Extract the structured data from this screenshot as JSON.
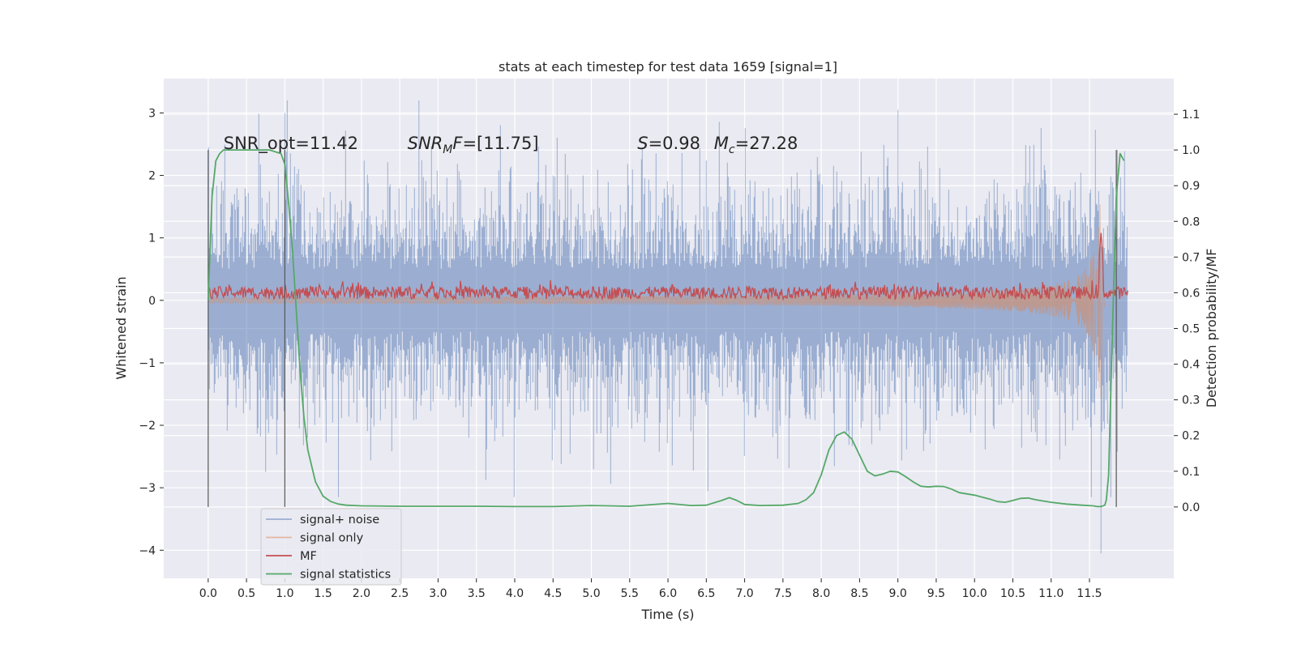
{
  "chart_data": {
    "type": "line",
    "title": "stats at each timestep for test data 1659 [signal=1]",
    "xlabel": "Time (s)",
    "ylabel": "Whitened strain",
    "ylabel_right": "Detection probability/MF",
    "xlim": [
      -0.58,
      12.6
    ],
    "ylim": [
      -4.45,
      3.55
    ],
    "ylim_right": [
      -0.2,
      1.2
    ],
    "x_ticks": [
      0.0,
      0.5,
      1.0,
      1.5,
      2.0,
      2.5,
      3.0,
      3.5,
      4.0,
      4.5,
      5.0,
      5.5,
      6.0,
      6.5,
      7.0,
      7.5,
      8.0,
      8.5,
      9.0,
      9.5,
      10.0,
      10.5,
      11.0,
      11.5
    ],
    "x_tick_labels": [
      "0.0",
      "0.5",
      "1.0",
      "1.5",
      "2.0",
      "2.5",
      "3.0",
      "3.5",
      "4.0",
      "4.5",
      "5.0",
      "5.5",
      "6.0",
      "6.5",
      "7.0",
      "7.5",
      "8.0",
      "8.5",
      "9.0",
      "9.5",
      "10.0",
      "10.5",
      "11.0",
      "11.5"
    ],
    "y_ticks": [
      -4,
      -3,
      -2,
      -1,
      0,
      1,
      2,
      3
    ],
    "y_tick_labels": [
      "−4",
      "−3",
      "−2",
      "−1",
      "0",
      "1",
      "2",
      "3"
    ],
    "y_right_ticks": [
      0.0,
      0.1,
      0.2,
      0.3,
      0.4,
      0.5,
      0.6,
      0.7,
      0.8,
      0.9,
      1.0,
      1.1
    ],
    "y_right_tick_labels": [
      "0.0",
      "0.1",
      "0.2",
      "0.3",
      "0.4",
      "0.5",
      "0.6",
      "0.7",
      "0.8",
      "0.9",
      "1.0",
      "1.1"
    ],
    "grid": true,
    "legend_position": "lower-left",
    "annotations": [
      {
        "text": "SNR_opt=11.42",
        "x": 0.2,
        "y": 2.42
      },
      {
        "text": "=[11.75]",
        "math_prefix": "SNR",
        "math_sub": "M",
        "math_tail": "F",
        "x": 2.6,
        "y": 2.42
      },
      {
        "text": "=0.98",
        "math_prefix": "S",
        "x": 5.6,
        "y": 2.42
      },
      {
        "text": "=27.28",
        "math_prefix": "M",
        "math_sub": "c",
        "x": 6.6,
        "y": 2.42
      }
    ],
    "vlines": [
      0.0,
      1.0,
      11.85
    ],
    "vline_range_right": [
      0.0,
      1.0
    ],
    "series": [
      {
        "name": "signal+ noise",
        "color": "#4c72b0",
        "alpha": 0.5,
        "axis": "left",
        "kind": "noise",
        "x_range": [
          0.0,
          12.0
        ],
        "approx_amplitude_std": 0.75,
        "y_range": [
          -4.05,
          3.2
        ]
      },
      {
        "name": "signal only",
        "color": "#dd8452",
        "alpha": 0.5,
        "axis": "left",
        "kind": "chirp",
        "x_range": [
          0.0,
          11.7
        ],
        "peak_amplitude": 2.0,
        "peak_time": 11.65
      },
      {
        "name": "MF",
        "color": "#c44e52",
        "axis": "right",
        "kind": "mf",
        "x_range": [
          0.0,
          12.0
        ],
        "baseline": 0.6,
        "peak": {
          "x": 11.65,
          "y": 0.77
        }
      },
      {
        "name": "signal statistics",
        "color": "#55a868",
        "axis": "right",
        "kind": "line",
        "x": [
          0.0,
          0.05,
          0.1,
          0.15,
          0.2,
          0.3,
          0.5,
          0.8,
          0.95,
          1.0,
          1.05,
          1.1,
          1.15,
          1.2,
          1.25,
          1.3,
          1.4,
          1.5,
          1.6,
          1.7,
          1.8,
          2.0,
          2.5,
          3.0,
          3.5,
          4.0,
          4.5,
          5.0,
          5.5,
          6.0,
          6.3,
          6.5,
          6.7,
          6.8,
          6.9,
          7.0,
          7.2,
          7.5,
          7.7,
          7.8,
          7.9,
          8.0,
          8.1,
          8.2,
          8.3,
          8.4,
          8.5,
          8.6,
          8.7,
          8.8,
          8.9,
          9.0,
          9.1,
          9.2,
          9.3,
          9.4,
          9.5,
          9.6,
          9.7,
          9.8,
          10.0,
          10.2,
          10.3,
          10.4,
          10.5,
          10.6,
          10.7,
          10.8,
          11.0,
          11.2,
          11.4,
          11.55,
          11.6,
          11.65,
          11.7,
          11.72,
          11.75,
          11.8,
          11.85,
          11.9,
          11.95
        ],
        "y": [
          0.58,
          0.87,
          0.97,
          0.99,
          1.0,
          1.0,
          1.0,
          1.0,
          0.99,
          0.96,
          0.85,
          0.72,
          0.55,
          0.38,
          0.25,
          0.16,
          0.07,
          0.03,
          0.015,
          0.008,
          0.005,
          0.003,
          0.002,
          0.002,
          0.002,
          0.001,
          0.001,
          0.004,
          0.002,
          0.01,
          0.004,
          0.005,
          0.018,
          0.026,
          0.018,
          0.007,
          0.004,
          0.005,
          0.01,
          0.02,
          0.04,
          0.09,
          0.16,
          0.2,
          0.21,
          0.19,
          0.145,
          0.1,
          0.087,
          0.092,
          0.1,
          0.098,
          0.085,
          0.07,
          0.058,
          0.056,
          0.058,
          0.057,
          0.05,
          0.04,
          0.033,
          0.022,
          0.015,
          0.013,
          0.018,
          0.024,
          0.025,
          0.02,
          0.013,
          0.008,
          0.005,
          0.003,
          0.001,
          0.001,
          0.005,
          0.02,
          0.09,
          0.5,
          0.87,
          0.99,
          0.97
        ]
      }
    ]
  }
}
